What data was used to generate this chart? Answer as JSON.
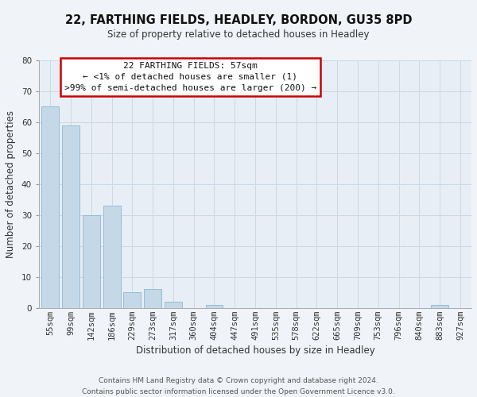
{
  "title": "22, FARTHING FIELDS, HEADLEY, BORDON, GU35 8PD",
  "subtitle": "Size of property relative to detached houses in Headley",
  "xlabel": "Distribution of detached houses by size in Headley",
  "ylabel": "Number of detached properties",
  "categories": [
    "55sqm",
    "99sqm",
    "142sqm",
    "186sqm",
    "229sqm",
    "273sqm",
    "317sqm",
    "360sqm",
    "404sqm",
    "447sqm",
    "491sqm",
    "535sqm",
    "578sqm",
    "622sqm",
    "665sqm",
    "709sqm",
    "753sqm",
    "796sqm",
    "840sqm",
    "883sqm",
    "927sqm"
  ],
  "values": [
    65,
    59,
    30,
    33,
    5,
    6,
    2,
    0,
    1,
    0,
    0,
    0,
    0,
    0,
    0,
    0,
    0,
    0,
    0,
    1,
    0
  ],
  "bar_color": "#c5d8e8",
  "bar_edge_color": "#8ab8d4",
  "ylim": [
    0,
    80
  ],
  "yticks": [
    0,
    10,
    20,
    30,
    40,
    50,
    60,
    70,
    80
  ],
  "annotation_box_text_line1": "22 FARTHING FIELDS: 57sqm",
  "annotation_box_text_line2": "← <1% of detached houses are smaller (1)",
  "annotation_box_text_line3": ">99% of semi-detached houses are larger (200) →",
  "annotation_box_color": "#ffffff",
  "annotation_box_edge_color": "#cc0000",
  "grid_color": "#ccd8e4",
  "plot_bg_color": "#e8eef5",
  "fig_bg_color": "#f0f4f8",
  "footer_line1": "Contains HM Land Registry data © Crown copyright and database right 2024.",
  "footer_line2": "Contains public sector information licensed under the Open Government Licence v3.0.",
  "title_fontsize": 10.5,
  "subtitle_fontsize": 8.5,
  "tick_fontsize": 7.5,
  "ylabel_fontsize": 8.5,
  "xlabel_fontsize": 8.5,
  "annotation_fontsize": 8.0,
  "footer_fontsize": 6.5
}
